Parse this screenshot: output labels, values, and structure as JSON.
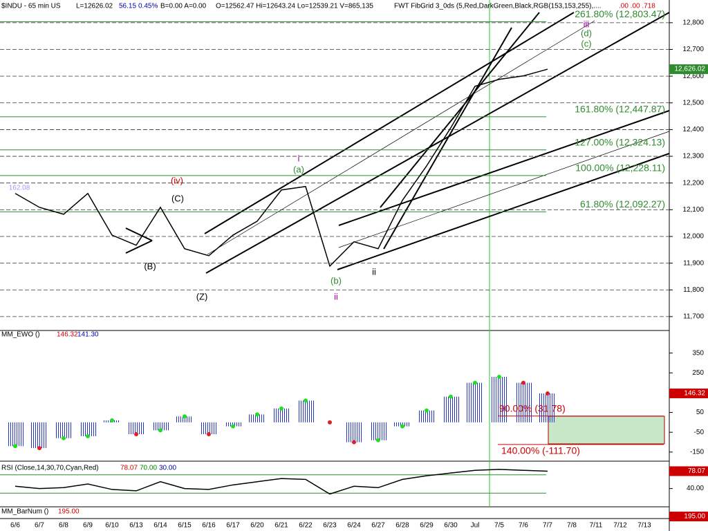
{
  "header": {
    "symbol": "$INDU - 65 min  US",
    "last": "L=12626.02",
    "change": "56.15",
    "change_pct": "0.45%",
    "bid_ask": "B=0.00  A=0.00",
    "ohlv": "O=12562.47   Hi=12643.24   Lo=12539.21   V=865,135",
    "study": "FWT FibGrid 3_0ds (5,Red,DarkGreen,Black,RGB(153,153,255),....",
    "extra": ".00  .00  .718"
  },
  "chart_data": [
    {
      "type": "line",
      "categories": [
        "6/6",
        "6/7",
        "6/8",
        "6/9",
        "6/10",
        "6/13",
        "6/14",
        "6/15",
        "6/16",
        "6/17",
        "6/20",
        "6/21",
        "6/22",
        "6/23",
        "6/24",
        "6/27",
        "6/28",
        "6/29",
        "6/30",
        "Jul",
        "7/5",
        "7/6",
        "7/7",
        "7/8",
        "7/11",
        "7/12",
        "7/13"
      ],
      "series": [
        {
          "color": "#000000",
          "values": [
            12161,
            12109,
            12083,
            12161,
            12005,
            11967,
            12109,
            11954,
            11928,
            12005,
            12057,
            12174,
            12187,
            11889,
            11980,
            11954,
            12135,
            12264,
            12407,
            12562,
            12588,
            12601,
            12626,
            null,
            null,
            null,
            null
          ]
        }
      ],
      "last_tag": {
        "value": 12626.02,
        "label": "12,626.02"
      },
      "ylim": [
        11648,
        12885
      ],
      "yticks": [
        {
          "value": 11700,
          "label": "11,700"
        },
        {
          "value": 11800,
          "label": "11,800"
        },
        {
          "value": 11900,
          "label": "11,900"
        },
        {
          "value": 12000,
          "label": "12,000"
        },
        {
          "value": 12100,
          "label": "12,100"
        },
        {
          "value": 12200,
          "label": "12,200"
        },
        {
          "value": 12300,
          "label": "12,300"
        },
        {
          "value": 12400,
          "label": "12,400"
        },
        {
          "value": 12500,
          "label": "12,500"
        },
        {
          "value": 12600,
          "label": "12,600"
        },
        {
          "value": 12700,
          "label": "12,700"
        },
        {
          "value": 12800,
          "label": "12,800"
        }
      ],
      "levels": [
        {
          "value": 12803.47,
          "label": "261.80% (12,803.47)"
        },
        {
          "value": 12447.87,
          "label": "161.80% (12,447.87)"
        },
        {
          "value": 12324.13,
          "label": "127.00% (12,324.13)"
        },
        {
          "value": 12228.11,
          "label": "100.00% (12,228.11)"
        },
        {
          "value": 12092.27,
          "label": "61.80% (12,092.27)"
        }
      ],
      "annotations": [
        "i",
        "(a)",
        "(iv)",
        "(C)",
        "(B)",
        "(Z)",
        "(b)",
        "ii",
        "ii",
        "iii",
        "(d)",
        "(c)",
        "162.08"
      ]
    },
    {
      "type": "bar",
      "title": "MM_EWO ()",
      "readouts": [
        "146.32",
        "141.30"
      ],
      "values": [
        -120,
        -130,
        -80,
        -70,
        10,
        -60,
        -40,
        30,
        -60,
        -20,
        40,
        70,
        110,
        0,
        -100,
        -90,
        -20,
        60,
        130,
        200,
        230,
        200,
        146.32,
        null,
        null,
        null,
        null
      ],
      "ylim": [
        -196,
        464
      ],
      "yticks": [
        350,
        250,
        150,
        50,
        -50,
        -150
      ],
      "levels": [
        {
          "value": 31.78,
          "label": "90.00% (31.78)"
        },
        {
          "value": -111.7,
          "label": "140.00% (-111.70)"
        }
      ]
    },
    {
      "type": "line",
      "title": "RSI (Close,14,30,70,Cyan,Red)",
      "readouts": [
        "78.07",
        "70.00",
        "30.00"
      ],
      "series": [
        {
          "color": "#000000",
          "values": [
            45,
            40,
            42,
            50,
            38,
            35,
            55,
            40,
            38,
            48,
            55,
            62,
            60,
            28,
            45,
            42,
            60,
            68,
            74,
            80,
            82,
            80,
            78.07,
            null,
            null,
            null,
            null
          ]
        }
      ],
      "ylim": [
        0,
        100
      ],
      "yticks": [
        {
          "value": 40,
          "label": "40.00"
        }
      ],
      "levels": [
        70,
        30
      ],
      "last_tag": {
        "value": 78.07,
        "label": "78.07"
      }
    }
  ],
  "barnum": {
    "title": "MM_BarNum ()",
    "value": 195,
    "value_label": "195.00"
  }
}
